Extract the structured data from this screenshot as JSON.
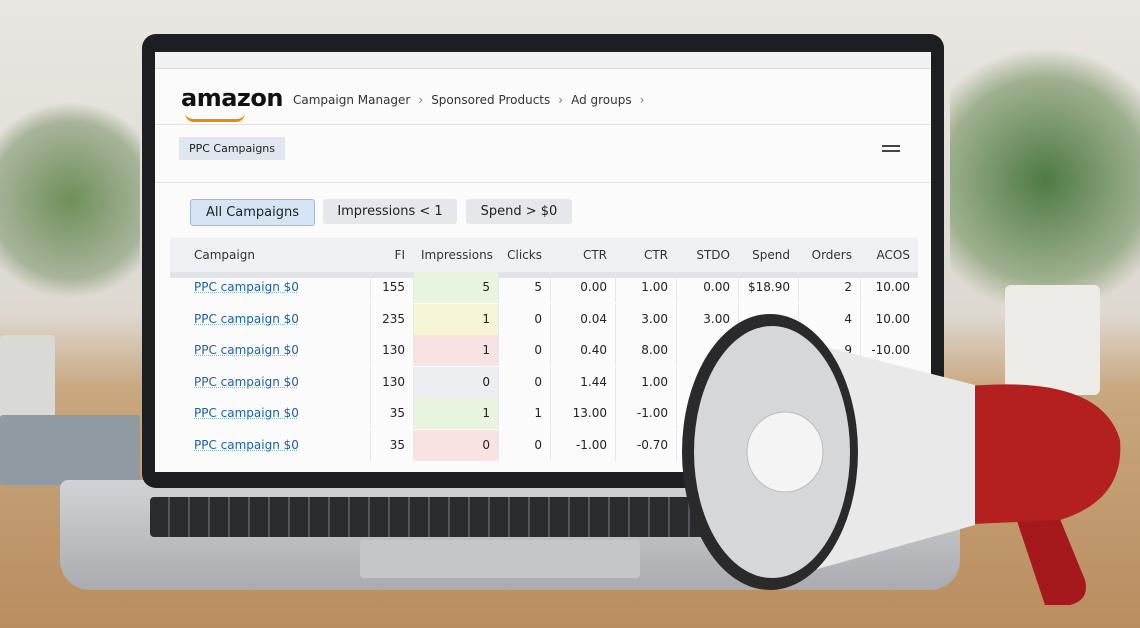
{
  "header": {
    "logo": "amazon",
    "breadcrumb": [
      "Campaign Manager",
      "Sponsored Products",
      "Ad groups"
    ]
  },
  "tab": "PPC Campaigns",
  "filters": [
    "All Campaigns",
    "Impressions < 1",
    "Spend > $0"
  ],
  "table": {
    "columns": [
      "Campaign",
      "FI",
      "Impressions",
      "Clicks",
      "CTR",
      "CTR",
      "STDO",
      "Spend",
      "Orders",
      "ACOS"
    ],
    "rows": [
      [
        "PPC campaign $0",
        "155",
        "5",
        "5",
        "0.00",
        "1.00",
        "0.00",
        "$18.90",
        "2",
        "10.00"
      ],
      [
        "PPC campaign $0",
        "235",
        "1",
        "0",
        "0.04",
        "3.00",
        "3.00",
        null,
        "4",
        "10.00"
      ],
      [
        "PPC campaign $0",
        "130",
        "1",
        "0",
        "0.40",
        "8.00",
        null,
        null,
        "9",
        "-10.00"
      ],
      [
        "PPC campaign $0",
        "130",
        "0",
        "0",
        "1.44",
        "1.00",
        null,
        null,
        null,
        null
      ],
      [
        "PPC campaign $0",
        "35",
        "1",
        "1",
        "13.00",
        "-1.00",
        null,
        null,
        null,
        null
      ],
      [
        "PPC campaign $0",
        "35",
        "0",
        "0",
        "-1.00",
        "-0.70",
        null,
        null,
        null,
        null
      ]
    ]
  }
}
